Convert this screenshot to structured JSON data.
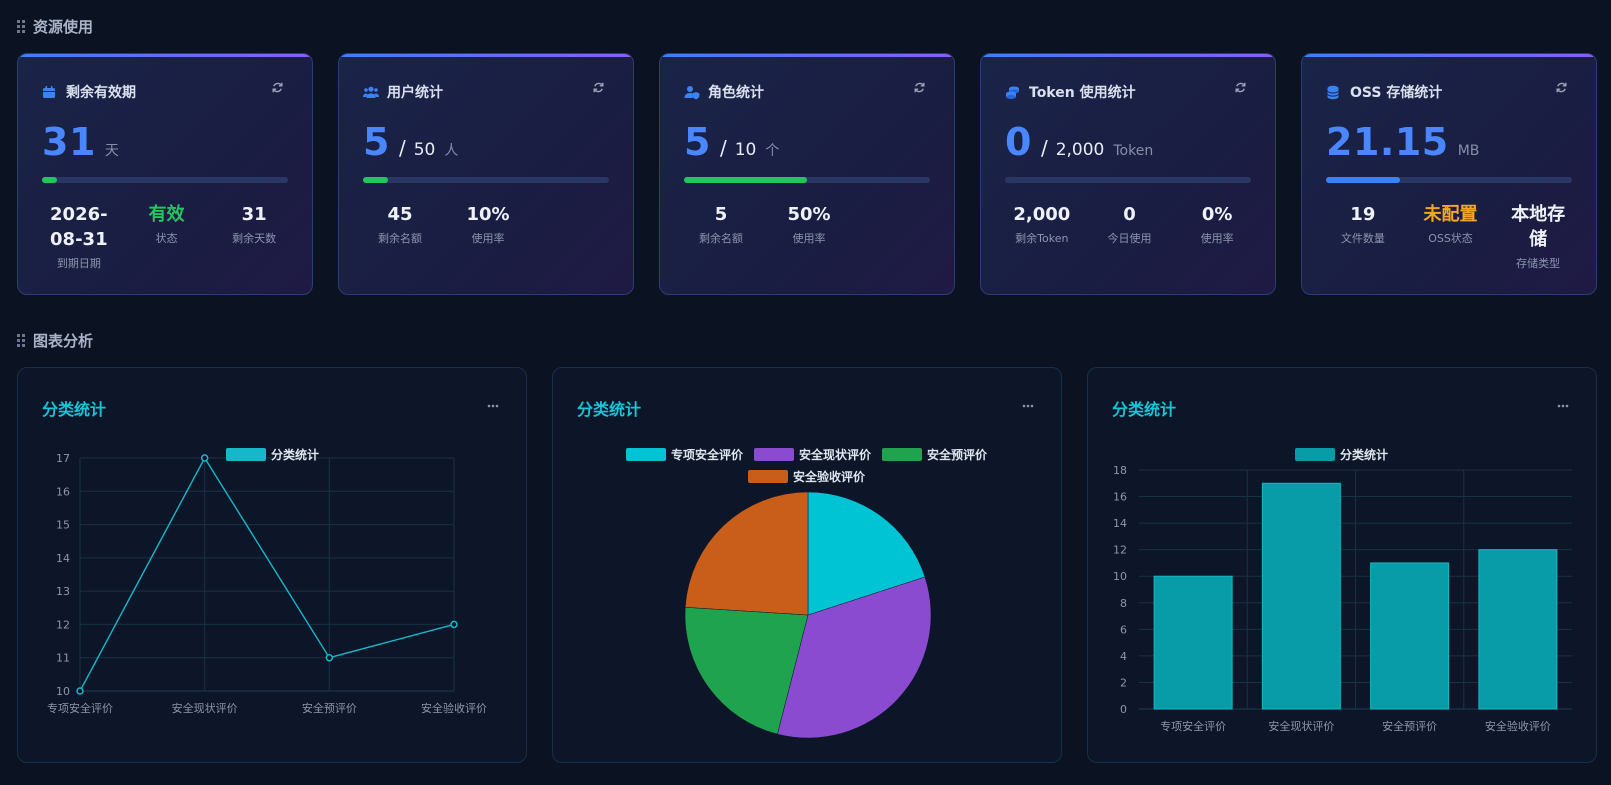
{
  "sections": {
    "resources": "资源使用",
    "charts": "图表分析"
  },
  "cards": [
    {
      "title": "剩余有效期",
      "icon": "calendar-icon",
      "value": "31",
      "separator": "",
      "total": "",
      "unit": "天",
      "progress": 0.06,
      "bar_color": "#22c55e",
      "stats": [
        {
          "value": "2026-08-31",
          "label": "到期日期",
          "color": "#eef2f8"
        },
        {
          "value": "有效",
          "label": "状态",
          "color": "#22c55e"
        },
        {
          "value": "31",
          "label": "剩余天数",
          "color": "#eef2f8"
        }
      ]
    },
    {
      "title": "用户统计",
      "icon": "users-icon",
      "value": "5",
      "separator": "/",
      "total": "50",
      "unit": "人",
      "progress": 0.1,
      "bar_color": "#22c55e",
      "stats": [
        {
          "value": "45",
          "label": "剩余名额",
          "color": "#eef2f8"
        },
        {
          "value": "10%",
          "label": "使用率",
          "color": "#eef2f8"
        }
      ]
    },
    {
      "title": "角色统计",
      "icon": "user-shield-icon",
      "value": "5",
      "separator": "/",
      "total": "10",
      "unit": "个",
      "progress": 0.5,
      "bar_color": "#22c55e",
      "stats": [
        {
          "value": "5",
          "label": "剩余名额",
          "color": "#eef2f8"
        },
        {
          "value": "50%",
          "label": "使用率",
          "color": "#eef2f8"
        }
      ]
    },
    {
      "title": "Token 使用统计",
      "icon": "coins-icon",
      "value": "0",
      "separator": "/",
      "total": "2,000",
      "unit": "Token",
      "progress": 0.0,
      "bar_color": "#22c55e",
      "stats": [
        {
          "value": "2,000",
          "label": "剩余Token",
          "color": "#eef2f8"
        },
        {
          "value": "0",
          "label": "今日使用",
          "color": "#eef2f8"
        },
        {
          "value": "0%",
          "label": "使用率",
          "color": "#eef2f8"
        }
      ]
    },
    {
      "title": "OSS 存储统计",
      "icon": "database-icon",
      "value": "21.15",
      "separator": "",
      "total": "",
      "unit": "MB",
      "progress": 0.3,
      "bar_color": "#3b82f6",
      "stats": [
        {
          "value": "19",
          "label": "文件数量",
          "color": "#eef2f8"
        },
        {
          "value": "未配置",
          "label": "OSS状态",
          "color": "#f5a623"
        },
        {
          "value": "本地存储",
          "label": "存储类型",
          "color": "#eef2f8"
        }
      ]
    }
  ],
  "chart_data": [
    {
      "type": "line",
      "title": "分类统计",
      "categories": [
        "专项安全评价",
        "安全现状评价",
        "安全预评价",
        "安全验收评价"
      ],
      "series": [
        {
          "name": "分类统计",
          "values": [
            10,
            17,
            11,
            12
          ],
          "color": "#14b8c8"
        }
      ],
      "ylim": [
        10,
        17
      ],
      "yticks": [
        10,
        11,
        12,
        13,
        14,
        15,
        16,
        17
      ],
      "legend": "top-center",
      "grid": true
    },
    {
      "type": "pie",
      "title": "分类统计",
      "labels": [
        "专项安全评价",
        "安全现状评价",
        "安全预评价",
        "安全验收评价"
      ],
      "values": [
        10,
        17,
        11,
        12
      ],
      "colors": [
        "#00c4d4",
        "#8b4bd1",
        "#1fa34e",
        "#c95e1a"
      ],
      "legend": "top-center"
    },
    {
      "type": "bar",
      "title": "分类统计",
      "categories": [
        "专项安全评价",
        "安全现状评价",
        "安全预评价",
        "安全验收评价"
      ],
      "series": [
        {
          "name": "分类统计",
          "values": [
            10,
            17,
            11,
            12
          ],
          "color": "#089ca8"
        }
      ],
      "ylim": [
        0,
        18
      ],
      "yticks": [
        0,
        2,
        4,
        6,
        8,
        10,
        12,
        14,
        16,
        18
      ],
      "legend": "top-center",
      "grid": true
    }
  ]
}
